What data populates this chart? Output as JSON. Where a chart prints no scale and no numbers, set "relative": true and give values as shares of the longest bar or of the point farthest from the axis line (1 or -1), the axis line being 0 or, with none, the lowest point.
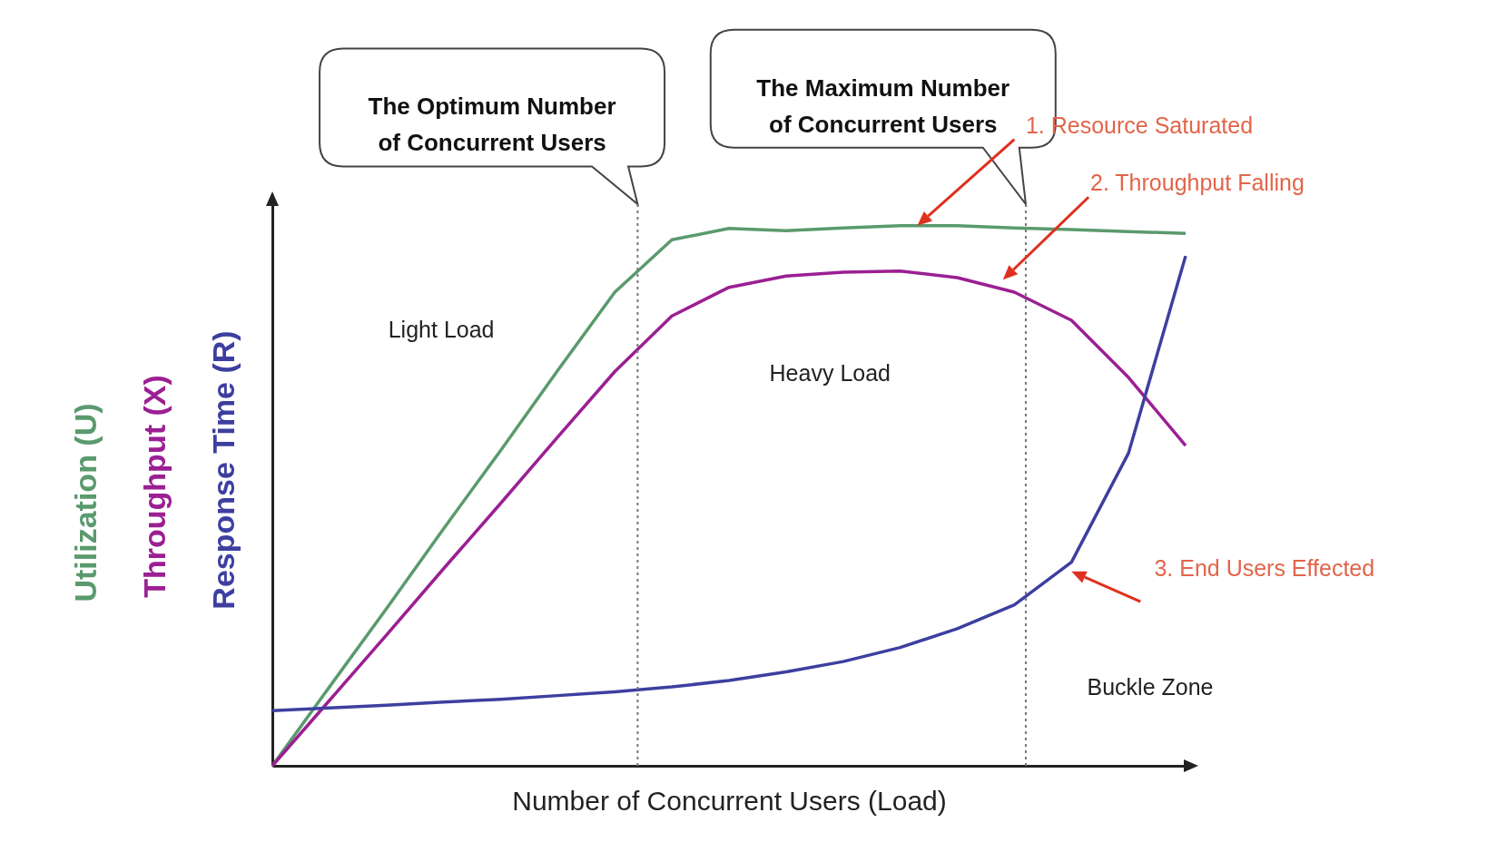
{
  "chart_data": {
    "type": "line",
    "relative": true,
    "xlabel": "Number of Concurrent Users (Load)",
    "categories": [
      null,
      null,
      null,
      null,
      null,
      null,
      null,
      null,
      null,
      null,
      null,
      null,
      null,
      null,
      null,
      null,
      null
    ],
    "series": [
      {
        "name": "Utilization (U)",
        "color": "#5a9a6e",
        "values": [
          0,
          0.146,
          0.291,
          0.439,
          0.584,
          0.732,
          0.877,
          0.974,
          0.995,
          0.991,
          0.996,
          1.0,
          1.0,
          0.996,
          0.993,
          0.989,
          0.986
        ]
      },
      {
        "name": "Throughput (X)",
        "color": "#9b1f93",
        "values": [
          0,
          0.121,
          0.242,
          0.365,
          0.486,
          0.609,
          0.73,
          0.833,
          0.886,
          0.907,
          0.914,
          0.916,
          0.904,
          0.877,
          0.825,
          0.719,
          0.593
        ]
      },
      {
        "name": "Response Time (R)",
        "color": "#3d3fa0",
        "values": [
          0.102,
          0.107,
          0.112,
          0.118,
          0.123,
          0.13,
          0.137,
          0.146,
          0.158,
          0.174,
          0.193,
          0.219,
          0.254,
          0.298,
          0.377,
          0.579,
          0.944
        ]
      }
    ],
    "ref_lines": [
      {
        "axis": "x",
        "label": "The Optimum Number of Concurrent Users",
        "line_style": "dotted",
        "color": "#777777"
      },
      {
        "axis": "x",
        "label": "The Maximum Number of Concurrent Users",
        "line_style": "dotted",
        "color": "#777777"
      }
    ],
    "annotations": [
      "Light Load",
      "Heavy Load",
      "Buckle Zone",
      "1. Resource Saturated",
      "2. Throughput Falling",
      "3. End Users Effected"
    ]
  }
}
